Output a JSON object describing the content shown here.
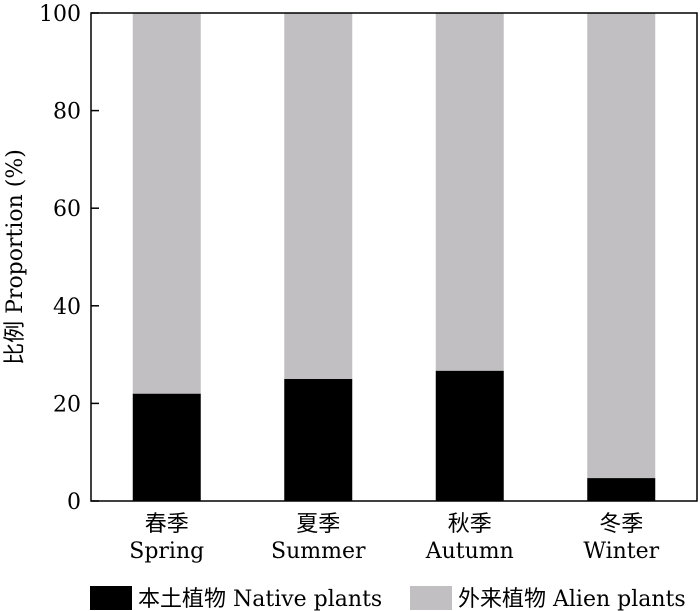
{
  "chart_data": {
    "type": "bar",
    "stacked": true,
    "categories": [
      {
        "zh": "春季",
        "en": "Spring"
      },
      {
        "zh": "夏季",
        "en": "Summer"
      },
      {
        "zh": "秋季",
        "en": "Autumn"
      },
      {
        "zh": "冬季",
        "en": "Winter"
      }
    ],
    "series": [
      {
        "name": "本土植物 Native plants",
        "color": "#000000",
        "values": [
          22,
          25,
          26.7,
          4.7
        ]
      },
      {
        "name": "外来植物 Alien plants",
        "color": "#c1bfc1",
        "values": [
          78,
          75,
          73.3,
          95.3
        ]
      }
    ],
    "ylabel": "比例 Proportion (%)",
    "ylim": [
      0,
      100
    ],
    "yticks": [
      0,
      20,
      40,
      60,
      80,
      100
    ],
    "grid": false,
    "legend_position": "bottom"
  }
}
